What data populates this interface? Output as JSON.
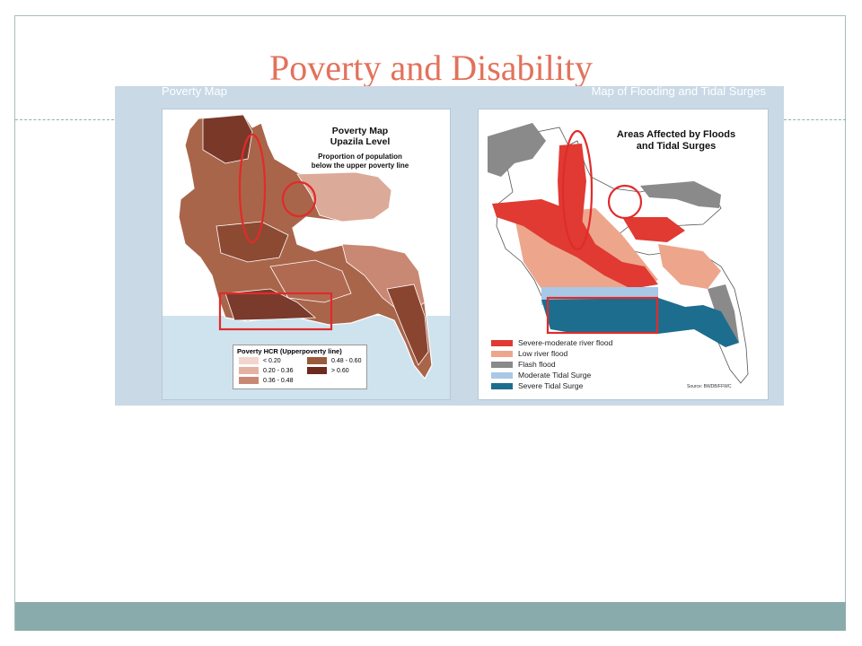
{
  "slide": {
    "title": "Poverty and Disability"
  },
  "figure": {
    "left_header": "Poverty Map",
    "right_header": "Map of Flooding and Tidal Surges"
  },
  "poverty_map": {
    "title_line1": "Poverty Map",
    "title_line2": "Upazila Level",
    "subtitle_line1": "Proportion of population",
    "subtitle_line2": "below  the upper poverty line",
    "legend_title": "Poverty HCR (Upperpoverty line)",
    "legend": [
      {
        "label": "< 0.20",
        "color": "#f2d5cc"
      },
      {
        "label": "0.20 - 0.36",
        "color": "#e3b2a3"
      },
      {
        "label": "0.36 - 0.48",
        "color": "#c98874"
      },
      {
        "label": "0.48 - 0.60",
        "color": "#9a5a3c"
      },
      {
        "label": "> 0.60",
        "color": "#6e2a1e"
      }
    ]
  },
  "flood_map": {
    "title_line1": "Areas Affected by Floods",
    "title_line2": "and Tidal Surges",
    "legend": [
      {
        "label": "Severe-moderate river flood",
        "color": "#e03a33"
      },
      {
        "label": "Low river flood",
        "color": "#eda68c"
      },
      {
        "label": "Flash flood",
        "color": "#8a8a8a"
      },
      {
        "label": "Moderate Tidal Surge",
        "color": "#a8c8e6"
      },
      {
        "label": "Severe Tidal Surge",
        "color": "#1d6e8e"
      }
    ],
    "source": "Source: BWDB/FFWC"
  },
  "colors": {
    "title": "#e2725b",
    "footer": "#8aabab",
    "highlight": "#e02b2b"
  }
}
